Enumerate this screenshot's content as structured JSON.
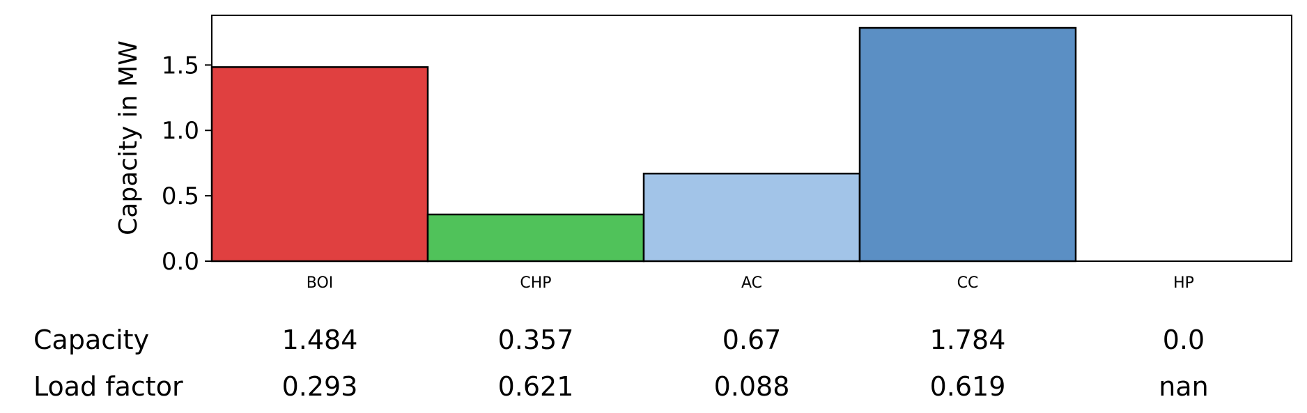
{
  "chart_data": {
    "type": "bar",
    "categories": [
      "BOI",
      "CHP",
      "AC",
      "CC",
      "HP"
    ],
    "values": [
      1.484,
      0.357,
      0.67,
      1.784,
      0.0
    ],
    "colors": [
      "#e04040",
      "#50c25a",
      "#a2c4e8",
      "#5b8fc4",
      "#ffffff"
    ],
    "ylabel": "Capacity in MW",
    "ylim": [
      0,
      1.88
    ],
    "yticks": [
      "0.0",
      "0.5",
      "1.0",
      "1.5"
    ],
    "ytick_values": [
      0.0,
      0.5,
      1.0,
      1.5
    ],
    "grid": false,
    "table": {
      "rows": [
        {
          "label": "Capacity",
          "values": [
            "1.484",
            "0.357",
            "0.67",
            "1.784",
            "0.0"
          ]
        },
        {
          "label": "Load factor",
          "values": [
            "0.293",
            "0.621",
            "0.088",
            "0.619",
            "nan"
          ]
        }
      ]
    }
  }
}
